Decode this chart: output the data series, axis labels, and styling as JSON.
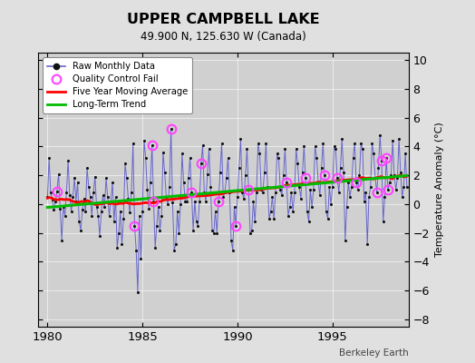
{
  "title": "UPPER CAMPBELL LAKE",
  "subtitle": "49.900 N, 125.630 W (Canada)",
  "ylabel": "Temperature Anomaly (°C)",
  "credit": "Berkeley Earth",
  "ylim": [
    -8.5,
    10.5
  ],
  "xlim": [
    1979.5,
    1999.0
  ],
  "yticks": [
    -8,
    -6,
    -4,
    -2,
    0,
    2,
    4,
    6,
    8,
    10
  ],
  "xticks": [
    1980,
    1985,
    1990,
    1995
  ],
  "bg_color": "#e0e0e0",
  "plot_bg_color": "#d0d0d0",
  "raw_color": "#6666cc",
  "dot_color": "#111111",
  "ma_color": "#ff0000",
  "trend_color": "#00bb00",
  "qc_color": "#ff44ff",
  "start_year": 1980,
  "n_months": 228,
  "raw_data": [
    0.5,
    3.2,
    0.8,
    0.3,
    -0.4,
    0.2,
    0.9,
    2.1,
    -0.3,
    -2.5,
    -0.2,
    -0.8,
    0.8,
    3.0,
    0.6,
    -0.5,
    0.5,
    1.8,
    0.2,
    1.5,
    -1.2,
    -1.8,
    -0.4,
    0.4,
    -0.5,
    2.5,
    1.2,
    0.5,
    -0.8,
    0.8,
    1.9,
    -0.2,
    -0.8,
    -2.2,
    -0.5,
    0.6,
    -0.2,
    1.8,
    0.5,
    -0.8,
    0.2,
    1.5,
    -1.2,
    0.5,
    -3.0,
    -2.0,
    -0.5,
    -2.8,
    -1.0,
    2.8,
    1.8,
    0.4,
    -0.6,
    0.8,
    4.2,
    -1.5,
    -3.2,
    -6.1,
    -0.8,
    -3.8,
    -0.5,
    4.4,
    3.2,
    1.0,
    -0.3,
    1.5,
    4.1,
    0.2,
    -3.0,
    -1.5,
    -0.2,
    -1.8,
    -0.8,
    3.6,
    2.2,
    0.5,
    0.0,
    1.2,
    5.2,
    0.1,
    -3.2,
    -2.8,
    -0.5,
    -2.0,
    0.0,
    3.5,
    1.5,
    0.2,
    0.2,
    1.8,
    3.2,
    0.8,
    -1.8,
    0.2,
    -1.2,
    -1.5,
    0.2,
    2.8,
    4.1,
    0.8,
    0.2,
    2.1,
    3.8,
    1.2,
    -1.8,
    -2.0,
    -0.5,
    -2.0,
    0.2,
    2.2,
    4.2,
    0.5,
    0.8,
    1.8,
    3.2,
    0.8,
    -2.5,
    -3.2,
    -0.2,
    -1.5,
    0.5,
    2.5,
    4.5,
    0.8,
    0.4,
    2.0,
    3.8,
    1.0,
    -2.0,
    -1.8,
    0.2,
    -1.2,
    0.8,
    4.2,
    3.5,
    1.0,
    0.8,
    2.2,
    4.2,
    1.2,
    -1.0,
    -0.5,
    0.5,
    -1.0,
    0.8,
    3.5,
    3.2,
    1.0,
    0.6,
    2.0,
    3.8,
    1.5,
    -0.8,
    -0.2,
    0.8,
    -0.5,
    0.8,
    3.8,
    2.8,
    1.2,
    0.4,
    2.2,
    4.0,
    1.8,
    -0.5,
    -1.2,
    1.0,
    -0.2,
    1.0,
    4.0,
    3.2,
    1.5,
    0.6,
    2.5,
    4.2,
    2.0,
    -0.5,
    -1.0,
    1.2,
    0.0,
    1.2,
    4.0,
    3.8,
    1.8,
    0.8,
    2.5,
    4.5,
    2.2,
    -2.5,
    -0.2,
    1.5,
    0.5,
    1.2,
    3.2,
    4.2,
    1.5,
    1.0,
    2.0,
    4.2,
    3.8,
    0.2,
    0.8,
    -2.8,
    0.5,
    1.2,
    4.2,
    3.5,
    1.8,
    0.8,
    2.5,
    4.8,
    3.0,
    -1.2,
    0.5,
    3.2,
    1.0,
    1.5,
    2.0,
    4.4,
    2.0,
    1.0,
    1.8,
    4.5,
    2.2,
    0.5,
    1.2,
    3.5,
    1.2
  ],
  "qc_indices": [
    6,
    55,
    66,
    67,
    78,
    91,
    97,
    108,
    119,
    127,
    151,
    163,
    175,
    183,
    195,
    208,
    211,
    214,
    215
  ]
}
